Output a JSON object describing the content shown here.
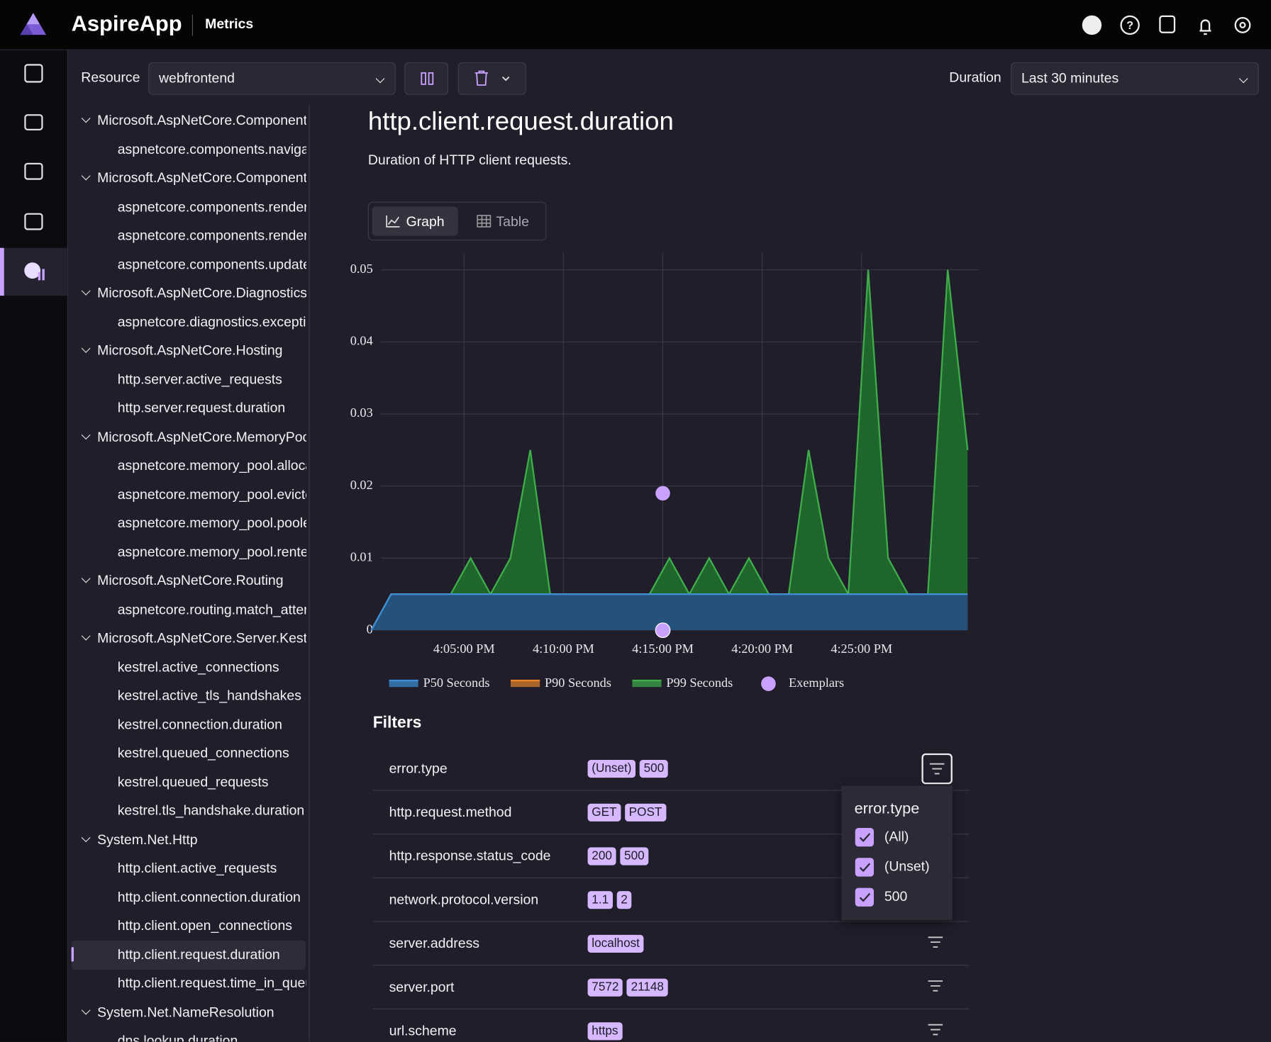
{
  "header": {
    "app_name": "AspireApp",
    "page": "Metrics"
  },
  "toolbar": {
    "resource_label": "Resource",
    "resource": "webfrontend",
    "duration_label": "Duration",
    "duration": "Last 30 minutes"
  },
  "tree": [
    {
      "label": "Microsoft.AspNetCore.Components",
      "children": [
        "aspnetcore.components.navigation"
      ]
    },
    {
      "label": "Microsoft.AspNetCore.Components.Lifecycle",
      "children": [
        "aspnetcore.components.render_diff.duration",
        "aspnetcore.components.render_diff.size",
        "aspnetcore.components.update_parameters.duration"
      ]
    },
    {
      "label": "Microsoft.AspNetCore.Diagnostics",
      "children": [
        "aspnetcore.diagnostics.exceptions"
      ]
    },
    {
      "label": "Microsoft.AspNetCore.Hosting",
      "children": [
        "http.server.active_requests",
        "http.server.request.duration"
      ]
    },
    {
      "label": "Microsoft.AspNetCore.MemoryPool",
      "children": [
        "aspnetcore.memory_pool.allocated",
        "aspnetcore.memory_pool.evicted",
        "aspnetcore.memory_pool.pooled",
        "aspnetcore.memory_pool.rented"
      ]
    },
    {
      "label": "Microsoft.AspNetCore.Routing",
      "children": [
        "aspnetcore.routing.match_attempts"
      ]
    },
    {
      "label": "Microsoft.AspNetCore.Server.Kestrel",
      "children": [
        "kestrel.active_connections",
        "kestrel.active_tls_handshakes",
        "kestrel.connection.duration",
        "kestrel.queued_connections",
        "kestrel.queued_requests",
        "kestrel.tls_handshake.duration"
      ]
    },
    {
      "label": "System.Net.Http",
      "children": [
        "http.client.active_requests",
        "http.client.connection.duration",
        "http.client.open_connections",
        "http.client.request.duration",
        "http.client.request.time_in_queue"
      ]
    },
    {
      "label": "System.Net.NameResolution",
      "children": [
        "dns.lookup.duration"
      ]
    }
  ],
  "metric": {
    "title": "http.client.request.duration",
    "description": "Duration of HTTP client requests."
  },
  "tabs": [
    "Graph",
    "Table"
  ],
  "chart_data": {
    "type": "area",
    "x": [
      "4:00:20 PM",
      "4:01:20 PM",
      "4:02:20 PM",
      "4:03:20 PM",
      "4:04:20 PM",
      "4:05:20 PM",
      "4:06:20 PM",
      "4:07:20 PM",
      "4:08:20 PM",
      "4:09:20 PM",
      "4:10:20 PM",
      "4:11:20 PM",
      "4:12:20 PM",
      "4:13:20 PM",
      "4:14:20 PM",
      "4:15:20 PM",
      "4:16:20 PM",
      "4:17:20 PM",
      "4:18:20 PM",
      "4:19:20 PM",
      "4:20:20 PM",
      "4:21:20 PM",
      "4:22:20 PM",
      "4:23:20 PM",
      "4:24:20 PM",
      "4:25:20 PM",
      "4:26:20 PM",
      "4:27:20 PM",
      "4:28:20 PM",
      "4:29:20 PM",
      "4:30:20 PM"
    ],
    "series": [
      {
        "name": "P50 Seconds",
        "color": "#3b8ed8",
        "values": [
          0,
          0.005,
          0.005,
          0.005,
          0.005,
          0.005,
          0.005,
          0.005,
          0.005,
          0.005,
          0.005,
          0.005,
          0.005,
          0.005,
          0.005,
          0.005,
          0.005,
          0.005,
          0.005,
          0.005,
          0.005,
          0.005,
          0.005,
          0.005,
          0.005,
          0.005,
          0.005,
          0.005,
          0.005,
          0.005,
          0.005
        ]
      },
      {
        "name": "P90 Seconds",
        "color": "#e8832a",
        "values": [
          0,
          0.005,
          0.005,
          0.005,
          0.005,
          0.005,
          0.005,
          0.005,
          0.005,
          0.005,
          0.005,
          0.005,
          0.005,
          0.005,
          0.005,
          0.005,
          0.005,
          0.005,
          0.005,
          0.005,
          0.005,
          0.005,
          0.005,
          0.005,
          0.005,
          0.005,
          0.005,
          0.005,
          0.005,
          0.005,
          0.005
        ]
      },
      {
        "name": "P99 Seconds",
        "color": "#3fae4a",
        "values": [
          0,
          0.005,
          0.005,
          0.005,
          0.005,
          0.01,
          0.005,
          0.01,
          0.025,
          0.005,
          0.005,
          0.005,
          0.005,
          0.005,
          0.005,
          0.01,
          0.005,
          0.01,
          0.005,
          0.01,
          0.005,
          0.005,
          0.025,
          0.01,
          0.005,
          0.05,
          0.01,
          0.005,
          0.005,
          0.05,
          0.025
        ]
      }
    ],
    "exemplars": {
      "name": "Exemplars",
      "color": "#c9a2ff",
      "x": [
        "4:15:00 PM",
        "4:15:00 PM"
      ],
      "values": [
        0.019,
        0
      ]
    },
    "xlim": [
      "4:00:20 PM",
      "4:30:55 PM"
    ],
    "xticks": [
      "4:05:00 PM",
      "4:10:00 PM",
      "4:15:00 PM",
      "4:20:00 PM",
      "4:25:00 PM"
    ],
    "ylim": [
      0,
      0.05
    ],
    "yticks": [
      0,
      0.01,
      0.02,
      0.03,
      0.04,
      0.05
    ],
    "grid": true
  },
  "filters": {
    "title": "Filters",
    "rows": [
      {
        "name": "error.type",
        "values": [
          "(Unset)",
          "500"
        ]
      },
      {
        "name": "http.request.method",
        "values": [
          "GET",
          "POST"
        ]
      },
      {
        "name": "http.response.status_code",
        "values": [
          "200",
          "500"
        ]
      },
      {
        "name": "network.protocol.version",
        "values": [
          "1.1",
          "2"
        ]
      },
      {
        "name": "server.address",
        "values": [
          "localhost"
        ]
      },
      {
        "name": "server.port",
        "values": [
          "7572",
          "21148"
        ]
      },
      {
        "name": "url.scheme",
        "values": [
          "https"
        ]
      }
    ]
  },
  "filter_popup": {
    "title": "error.type",
    "options": [
      "(All)",
      "(Unset)",
      "500"
    ]
  }
}
